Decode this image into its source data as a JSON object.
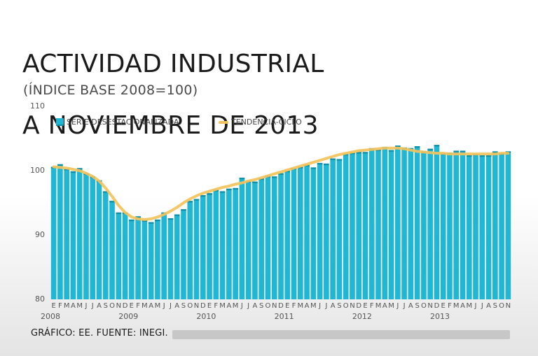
{
  "title_lines": [
    "ACTIVIDAD INDUSTRIAL",
    "A NOVIEMBRE DE 2013"
  ],
  "subtitle": "(ÍNDICE BASE 2008=100)",
  "legend": {
    "bars": "SERIE DESESTACIONALIZADA",
    "line": "TENDENCIA-CICLO"
  },
  "footer": "GRÁFICO: EE. FUENTE: INEGI.",
  "colors": {
    "bar_fill": "#1fb7d4",
    "bar_edge": "#0e8fa8",
    "trend_line": "#f3c25a"
  },
  "chart_data": {
    "type": "bar",
    "title": "ACTIVIDAD INDUSTRIAL A NOVIEMBRE DE 2013",
    "subtitle": "(ÍNDICE BASE 2008=100)",
    "ylim": [
      80,
      110
    ],
    "yticks": [
      80,
      90,
      100,
      110
    ],
    "grid": false,
    "legend_position": "top-left",
    "month_labels": [
      "E",
      "F",
      "M",
      "A",
      "M",
      "J",
      "J",
      "A",
      "S",
      "O",
      "N",
      "D",
      "E",
      "F",
      "M",
      "A",
      "M",
      "J",
      "J",
      "A",
      "S",
      "O",
      "N",
      "D",
      "E",
      "F",
      "M",
      "A",
      "M",
      "J",
      "J",
      "A",
      "S",
      "O",
      "N",
      "D",
      "E",
      "F",
      "M",
      "A",
      "M",
      "J",
      "J",
      "A",
      "S",
      "O",
      "N",
      "D",
      "E",
      "F",
      "M",
      "A",
      "M",
      "J",
      "J",
      "A",
      "S",
      "O",
      "N",
      "D",
      "E",
      "F",
      "M",
      "A",
      "M",
      "J",
      "J",
      "A",
      "S",
      "O",
      "N"
    ],
    "year_labels": [
      {
        "label": "2008",
        "index": 0
      },
      {
        "label": "2009",
        "index": 12
      },
      {
        "label": "2010",
        "index": 24
      },
      {
        "label": "2011",
        "index": 36
      },
      {
        "label": "2012",
        "index": 48
      },
      {
        "label": "2013",
        "index": 60
      }
    ],
    "series": [
      {
        "name": "SERIE DESESTACIONALIZADA",
        "kind": "bar",
        "values": [
          100.6,
          101.0,
          100.3,
          99.9,
          100.4,
          99.6,
          99.1,
          98.5,
          96.8,
          95.3,
          93.5,
          93.5,
          92.4,
          92.9,
          92.3,
          92.0,
          92.4,
          93.5,
          92.6,
          93.2,
          94.0,
          95.3,
          95.6,
          96.2,
          96.5,
          97.0,
          96.8,
          97.2,
          97.3,
          98.9,
          98.4,
          98.3,
          98.8,
          99.2,
          99.1,
          99.6,
          100.0,
          100.4,
          100.6,
          100.9,
          100.5,
          101.2,
          101.1,
          101.9,
          101.8,
          102.6,
          102.8,
          102.9,
          102.9,
          103.5,
          103.3,
          103.7,
          103.2,
          103.9,
          103.6,
          103.5,
          103.8,
          103.0,
          103.4,
          104.0,
          102.7,
          102.8,
          103.1,
          103.1,
          102.4,
          102.6,
          102.4,
          102.4,
          103.0,
          102.7,
          103.0
        ]
      },
      {
        "name": "TENDENCIA-CICLO",
        "kind": "line",
        "values": [
          100.6,
          100.5,
          100.4,
          100.2,
          100.0,
          99.6,
          99.1,
          98.4,
          97.3,
          96.0,
          94.6,
          93.5,
          92.8,
          92.5,
          92.4,
          92.5,
          92.8,
          93.2,
          93.7,
          94.3,
          95.0,
          95.6,
          96.1,
          96.5,
          96.8,
          97.1,
          97.4,
          97.6,
          97.9,
          98.1,
          98.4,
          98.6,
          98.9,
          99.2,
          99.5,
          99.8,
          100.1,
          100.4,
          100.7,
          101.0,
          101.3,
          101.6,
          101.9,
          102.2,
          102.5,
          102.7,
          102.9,
          103.1,
          103.2,
          103.3,
          103.4,
          103.5,
          103.5,
          103.5,
          103.4,
          103.2,
          103.0,
          102.9,
          102.8,
          102.7,
          102.7,
          102.6,
          102.6,
          102.6,
          102.6,
          102.6,
          102.6,
          102.6,
          102.6,
          102.7,
          102.7
        ]
      }
    ]
  }
}
